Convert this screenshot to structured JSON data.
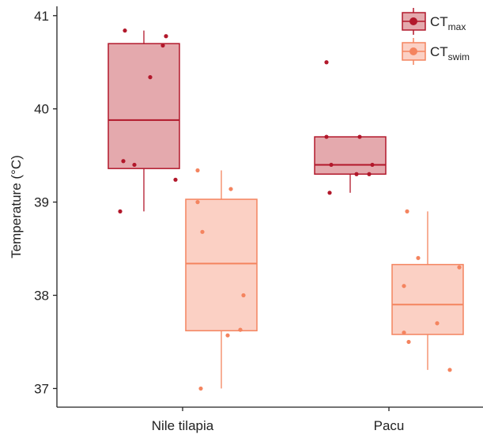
{
  "chart_data": {
    "type": "box",
    "title": "",
    "xlabel": "",
    "ylabel": "Temperature (°C)",
    "ylim": [
      36.8,
      41.1
    ],
    "yticks": [
      37,
      38,
      39,
      40,
      41
    ],
    "categories": [
      "Nile tilapia",
      "Pacu"
    ],
    "grid": false,
    "legend_position": "top-right",
    "series": [
      {
        "name": "CT",
        "name_subscript": "max",
        "color": "#b2182b",
        "fill": "#e4a9ad",
        "boxes": [
          {
            "category": "Nile tilapia",
            "whisker_low": 38.9,
            "q1": 39.36,
            "median": 39.88,
            "q3": 40.7,
            "whisker_high": 40.84,
            "points": [
              40.84,
              40.78,
              40.68,
              40.34,
              39.44,
              39.4,
              39.24,
              38.9
            ]
          },
          {
            "category": "Pacu",
            "whisker_low": 39.1,
            "q1": 39.3,
            "median": 39.4,
            "q3": 39.7,
            "whisker_high": 39.7,
            "points": [
              40.5,
              39.7,
              39.7,
              39.4,
              39.4,
              39.3,
              39.3,
              39.1
            ]
          }
        ]
      },
      {
        "name": "CT",
        "name_subscript": "swim",
        "color": "#f4845f",
        "fill": "#fbd0c4",
        "boxes": [
          {
            "category": "Nile tilapia",
            "whisker_low": 37.0,
            "q1": 37.62,
            "median": 38.34,
            "q3": 39.03,
            "whisker_high": 39.34,
            "points": [
              39.34,
              39.14,
              39.0,
              38.68,
              38.0,
              37.63,
              37.57,
              37.0
            ]
          },
          {
            "category": "Pacu",
            "whisker_low": 37.2,
            "q1": 37.58,
            "median": 37.9,
            "q3": 38.33,
            "whisker_high": 38.9,
            "points": [
              38.9,
              38.4,
              38.3,
              38.1,
              37.7,
              37.6,
              37.5,
              37.2
            ]
          }
        ]
      }
    ]
  }
}
